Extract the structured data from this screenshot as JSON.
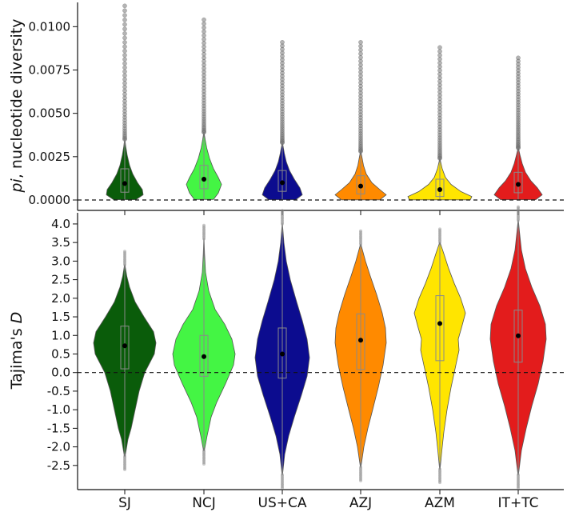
{
  "chart_data": [
    {
      "type": "violin",
      "panel": "top",
      "ylabel": "pi, nucleotide diversity",
      "ylabel_parts": [
        "pi",
        ", nucleotide diversity"
      ],
      "ylim": [
        -0.0006,
        0.0114
      ],
      "yticks": [
        0.0,
        0.0025,
        0.005,
        0.0075,
        0.01
      ],
      "ytick_labels": [
        "0.0000",
        "0.0025",
        "0.0050",
        "0.0075",
        "0.0100"
      ],
      "reference_line": 0.0,
      "grid": false,
      "categories": [
        "SJ",
        "NCJ",
        "US+CA",
        "AZJ",
        "AZM",
        "IT+TC"
      ],
      "colors": [
        "#0a5c0a",
        "#44f544",
        "#0c0c8f",
        "#ff8a00",
        "#ffe500",
        "#e31c1c"
      ],
      "series": [
        {
          "min": 2e-05,
          "q1": 0.00045,
          "mean": 0.00095,
          "q3": 0.0018,
          "violin_top": 0.0035,
          "outlier_max": 0.0112
        },
        {
          "min": 3e-05,
          "q1": 0.00065,
          "mean": 0.0012,
          "q3": 0.002,
          "violin_top": 0.0039,
          "outlier_max": 0.0104
        },
        {
          "min": 2e-05,
          "q1": 0.0005,
          "mean": 0.001,
          "q3": 0.0017,
          "violin_top": 0.0033,
          "outlier_max": 0.0091
        },
        {
          "min": 1e-05,
          "q1": 0.00035,
          "mean": 0.0008,
          "q3": 0.0014,
          "violin_top": 0.0028,
          "outlier_max": 0.0091
        },
        {
          "min": 1e-05,
          "q1": 0.0002,
          "mean": 0.0006,
          "q3": 0.0012,
          "violin_top": 0.0024,
          "outlier_max": 0.0088
        },
        {
          "min": 2e-05,
          "q1": 0.00042,
          "mean": 0.0009,
          "q3": 0.0016,
          "violin_top": 0.003,
          "outlier_max": 0.0082
        }
      ]
    },
    {
      "type": "violin",
      "panel": "bottom",
      "ylabel": "Tajima's D",
      "ylabel_parts": [
        "Tajima's ",
        "D"
      ],
      "ylim": [
        -3.15,
        4.3
      ],
      "yticks": [
        -2.5,
        -2.0,
        -1.5,
        -1.0,
        -0.5,
        0.0,
        0.5,
        1.0,
        1.5,
        2.0,
        2.5,
        3.0,
        3.5,
        4.0
      ],
      "ytick_labels": [
        "-2.5",
        "-2.0",
        "-1.5",
        "-1.0",
        "-0.5",
        "0.0",
        "0.5",
        "1.0",
        "1.5",
        "2.0",
        "2.5",
        "3.0",
        "3.5",
        "4.0"
      ],
      "reference_line": 0.0,
      "grid": false,
      "categories": [
        "SJ",
        "NCJ",
        "US+CA",
        "AZJ",
        "AZM",
        "IT+TC"
      ],
      "colors": [
        "#0a5c0a",
        "#44f544",
        "#0c0c8f",
        "#ff8a00",
        "#ffe500",
        "#e31c1c"
      ],
      "series": [
        {
          "min": -2.25,
          "q1": 0.1,
          "mean": 0.72,
          "q3": 1.25,
          "max": 2.9
        },
        {
          "min": -2.1,
          "q1": -0.1,
          "mean": 0.43,
          "q3": 1.0,
          "max": 3.6
        },
        {
          "min": -2.75,
          "q1": -0.15,
          "mean": 0.5,
          "q3": 1.2,
          "max": 4.0
        },
        {
          "min": -2.55,
          "q1": 0.08,
          "mean": 0.87,
          "q3": 1.58,
          "max": 3.45
        },
        {
          "min": -2.6,
          "q1": 0.32,
          "mean": 1.32,
          "q3": 2.07,
          "max": 3.5
        },
        {
          "min": -2.75,
          "q1": 0.28,
          "mean": 0.99,
          "q3": 1.68,
          "max": 4.1
        }
      ]
    }
  ]
}
